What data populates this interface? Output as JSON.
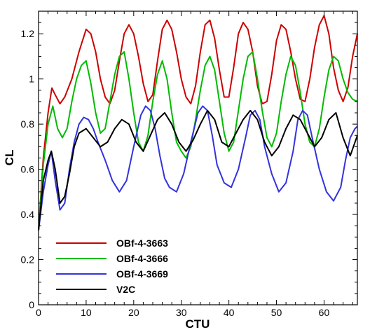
{
  "chart_data": {
    "type": "line",
    "title": "",
    "xlabel": "CTU",
    "ylabel": "CL",
    "xlim": [
      0,
      67
    ],
    "ylim": [
      0,
      1.3
    ],
    "x_ticks": [
      0,
      10,
      20,
      30,
      40,
      50,
      60
    ],
    "x_tick_labels": [
      "0",
      "10",
      "20",
      "30",
      "40",
      "50",
      "60"
    ],
    "y_ticks": [
      0,
      0.2,
      0.4,
      0.6,
      0.8,
      1.0,
      1.2
    ],
    "y_tick_labels": [
      "0",
      "0.2",
      "0.4",
      "0.6",
      "0.8",
      "1",
      "1.2"
    ],
    "grid": false,
    "legend_position": "bottom-left",
    "series": [
      {
        "name": "OBf-4-3663",
        "color": "#cc0000",
        "x": [
          0,
          1,
          2,
          2.8,
          3.5,
          4.5,
          5.5,
          7,
          8.5,
          10,
          11,
          12,
          13,
          14,
          15,
          16,
          17,
          18,
          19,
          20,
          21,
          22,
          23,
          24,
          25,
          26,
          27,
          28,
          29,
          30,
          31,
          32,
          33,
          34,
          35,
          36,
          37,
          38,
          39,
          40,
          41,
          42,
          43,
          44,
          45,
          46,
          47,
          48,
          49,
          50,
          51,
          52,
          53,
          54,
          55,
          56,
          57,
          58,
          59,
          60,
          61,
          62,
          63,
          64,
          65,
          66,
          67
        ],
        "y": [
          0.33,
          0.65,
          0.85,
          0.96,
          0.93,
          0.89,
          0.92,
          1.0,
          1.12,
          1.22,
          1.2,
          1.12,
          1.0,
          0.92,
          0.89,
          0.95,
          1.08,
          1.2,
          1.24,
          1.2,
          1.1,
          0.98,
          0.9,
          0.93,
          1.08,
          1.22,
          1.26,
          1.22,
          1.12,
          1.0,
          0.92,
          0.89,
          0.97,
          1.12,
          1.24,
          1.26,
          1.18,
          1.04,
          0.92,
          0.92,
          1.05,
          1.2,
          1.25,
          1.22,
          1.12,
          0.97,
          0.89,
          0.9,
          1.02,
          1.17,
          1.24,
          1.22,
          1.12,
          1.0,
          0.91,
          0.9,
          1.0,
          1.14,
          1.24,
          1.28,
          1.2,
          1.05,
          0.95,
          0.9,
          0.96,
          1.1,
          1.2
        ]
      },
      {
        "name": "OBf-4-3666",
        "color": "#00bb00",
        "x": [
          0,
          1,
          2,
          3,
          4,
          5,
          6,
          7,
          8,
          9,
          10,
          11,
          12,
          13,
          14,
          15,
          16,
          17,
          18,
          19,
          20,
          21,
          22,
          23,
          24,
          25,
          26,
          27,
          28,
          29,
          30,
          31,
          32,
          33,
          34,
          35,
          36,
          37,
          38,
          39,
          40,
          41,
          42,
          43,
          44,
          45,
          46,
          47,
          48,
          49,
          50,
          51,
          52,
          53,
          54,
          55,
          56,
          57,
          58,
          59,
          60,
          61,
          62,
          63,
          64,
          65,
          66,
          67
        ],
        "y": [
          0.33,
          0.62,
          0.8,
          0.88,
          0.78,
          0.74,
          0.78,
          0.9,
          1.0,
          1.06,
          1.08,
          0.98,
          0.85,
          0.76,
          0.78,
          0.9,
          1.02,
          1.1,
          1.12,
          1.0,
          0.85,
          0.72,
          0.68,
          0.75,
          0.9,
          1.02,
          1.08,
          1.0,
          0.85,
          0.72,
          0.68,
          0.65,
          0.7,
          0.82,
          0.95,
          1.06,
          1.1,
          1.04,
          0.9,
          0.76,
          0.68,
          0.72,
          0.86,
          1.0,
          1.1,
          1.12,
          1.0,
          0.86,
          0.74,
          0.7,
          0.76,
          0.9,
          1.02,
          1.1,
          1.06,
          0.94,
          0.8,
          0.72,
          0.7,
          0.78,
          0.92,
          1.04,
          1.1,
          1.08,
          1.0,
          0.94,
          0.91,
          0.9
        ]
      },
      {
        "name": "OBf-4-3669",
        "color": "#3333dd",
        "x": [
          0,
          1,
          2,
          2.7,
          3.5,
          4.5,
          5.5,
          6.5,
          7.5,
          8.5,
          9.5,
          10.5,
          11.5,
          12.5,
          14,
          15.5,
          17,
          18.5,
          20,
          21.5,
          22.5,
          23.5,
          24.5,
          25.5,
          26.5,
          27.5,
          29,
          30.5,
          32,
          33.5,
          34.5,
          35.5,
          36.5,
          37.5,
          39,
          40.5,
          42,
          43.5,
          44.5,
          45.5,
          46.5,
          47.5,
          49,
          50.5,
          52,
          53.5,
          54.5,
          55.5,
          56.5,
          57.5,
          59,
          60.5,
          62,
          63.5,
          64.5,
          65.5,
          66.5,
          67
        ],
        "y": [
          0.33,
          0.5,
          0.62,
          0.68,
          0.55,
          0.42,
          0.45,
          0.6,
          0.72,
          0.8,
          0.83,
          0.82,
          0.78,
          0.72,
          0.64,
          0.55,
          0.5,
          0.55,
          0.7,
          0.84,
          0.88,
          0.86,
          0.78,
          0.66,
          0.56,
          0.52,
          0.5,
          0.58,
          0.72,
          0.85,
          0.88,
          0.86,
          0.75,
          0.62,
          0.54,
          0.52,
          0.6,
          0.74,
          0.84,
          0.86,
          0.82,
          0.7,
          0.58,
          0.5,
          0.54,
          0.68,
          0.82,
          0.86,
          0.84,
          0.74,
          0.6,
          0.5,
          0.46,
          0.52,
          0.64,
          0.74,
          0.78,
          0.79
        ]
      },
      {
        "name": "V2C",
        "color": "#000000",
        "x": [
          0,
          1,
          2,
          2.7,
          3.5,
          4.5,
          5.5,
          6.5,
          7.5,
          8.5,
          10,
          11.5,
          13,
          14.5,
          16,
          17.5,
          19,
          20.5,
          22,
          23.5,
          25,
          26.5,
          28,
          29.5,
          31,
          32.5,
          34,
          35.5,
          37,
          38.5,
          40,
          41.5,
          43,
          44.5,
          46,
          47.5,
          49,
          50.5,
          52,
          53.5,
          55,
          56.5,
          58,
          59.5,
          61,
          62.5,
          64,
          65.5,
          67
        ],
        "y": [
          0.33,
          0.55,
          0.64,
          0.68,
          0.6,
          0.45,
          0.48,
          0.58,
          0.7,
          0.76,
          0.78,
          0.74,
          0.7,
          0.72,
          0.78,
          0.82,
          0.8,
          0.72,
          0.68,
          0.75,
          0.82,
          0.85,
          0.8,
          0.72,
          0.68,
          0.73,
          0.8,
          0.86,
          0.82,
          0.72,
          0.7,
          0.76,
          0.82,
          0.86,
          0.82,
          0.72,
          0.66,
          0.7,
          0.78,
          0.84,
          0.82,
          0.76,
          0.7,
          0.74,
          0.82,
          0.85,
          0.74,
          0.66,
          0.75
        ]
      }
    ]
  }
}
